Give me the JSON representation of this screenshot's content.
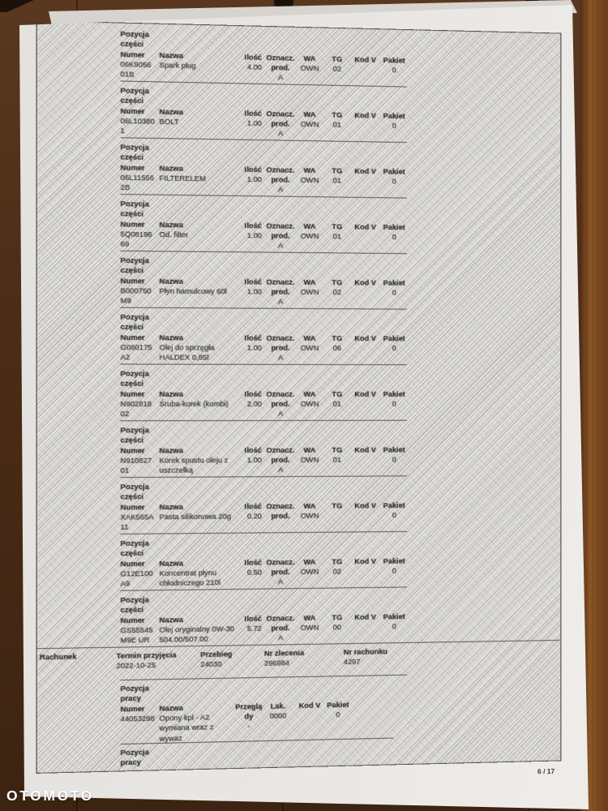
{
  "watermark_text": "OTOMOTO",
  "page_footer": "6 / 17",
  "parts_labels": {
    "pozycja": "Pozycja",
    "czesci": "części",
    "numer": "Numer",
    "nazwa": "Nazwa",
    "ilosc": "Ilość",
    "oznacz": "Oznacz.",
    "prod": "prod.",
    "wa": "WA",
    "tg": "TG",
    "kod_v": "Kod V",
    "pakiet": "Pakiet"
  },
  "parts": [
    {
      "numer1": "06K9056",
      "numer2": "01B",
      "nazwa1": "Spark plug",
      "nazwa2": "",
      "ilosc": "4.00",
      "oznacz_val": "A",
      "wa": "OWN",
      "tg": "02",
      "pakiet": "0"
    },
    {
      "numer1": "06L10380",
      "numer2": "1",
      "nazwa1": "BOLT",
      "nazwa2": "",
      "ilosc": "1.00",
      "oznacz_val": "A",
      "wa": "OWN",
      "tg": "01",
      "pakiet": "0"
    },
    {
      "numer1": "06L11556",
      "numer2": "2B",
      "nazwa1": "FILTERELEM",
      "nazwa2": "",
      "ilosc": "1.00",
      "oznacz_val": "A",
      "wa": "OWN",
      "tg": "01",
      "pakiet": "0"
    },
    {
      "numer1": "5Q08196",
      "numer2": "69",
      "nazwa1": "Od. filter",
      "nazwa2": "",
      "ilosc": "1.00",
      "oznacz_val": "A",
      "wa": "OWN",
      "tg": "01",
      "pakiet": "0"
    },
    {
      "numer1": "B000750",
      "numer2": "M9",
      "nazwa1": "Płyn hamulcowy 60l",
      "nazwa2": "",
      "ilosc": "1.00",
      "oznacz_val": "A",
      "wa": "OWN",
      "tg": "02",
      "pakiet": "0"
    },
    {
      "numer1": "G060175",
      "numer2": "A2",
      "nazwa1": "Olej do sprzęgła",
      "nazwa2": "HALDEX 0,85l",
      "ilosc": "1.00",
      "oznacz_val": "A",
      "wa": "OWN",
      "tg": "06",
      "pakiet": "0"
    },
    {
      "numer1": "N902818",
      "numer2": "02",
      "nazwa1": "Śruba-korek (kombi)",
      "nazwa2": "",
      "ilosc": "2.00",
      "oznacz_val": "A",
      "wa": "OWN",
      "tg": "01",
      "pakiet": "0"
    },
    {
      "numer1": "N910827",
      "numer2": "01",
      "nazwa1": "Korek spustu oleju z",
      "nazwa2": "uszczelką",
      "ilosc": "1.00",
      "oznacz_val": "A",
      "wa": "OWN",
      "tg": "01",
      "pakiet": "0"
    },
    {
      "numer1": "XAK565A",
      "numer2": "11",
      "nazwa1": "Pasta silikonowa 20g",
      "nazwa2": "",
      "ilosc": "0.20",
      "oznacz_val": "",
      "wa": "OWN",
      "tg": "",
      "pakiet": "0"
    },
    {
      "numer1": "G12E100",
      "numer2": "A9",
      "nazwa1": "Koncentrat płynu",
      "nazwa2": "chłodniczego 210l",
      "ilosc": "0.50",
      "oznacz_val": "A",
      "wa": "OWN",
      "tg": "02",
      "pakiet": "0"
    },
    {
      "numer1": "GS55545",
      "numer2": "M9E UR",
      "nazwa1": "Olej oryginalny 0W-30",
      "nazwa2": "504.00/507.00",
      "ilosc": "5.72",
      "oznacz_val": "A",
      "wa": "OWN",
      "tg": "00",
      "pakiet": "0"
    }
  ],
  "invoice_row": {
    "rachunek_label": "Rachunek",
    "termin_label": "Termin przyjęcia",
    "termin_value": "2022-10-25",
    "przebieg_label": "Przebieg",
    "przebieg_value": "24030",
    "zlecenie_label": "Nr zlecenia",
    "zlecenie_value": "296984",
    "rachunek_nr_label": "Nr rachunku",
    "rachunek_nr_value": "4297"
  },
  "work_labels": {
    "pozycja": "Pozycja",
    "pracy": "pracy",
    "numer": "Numer",
    "nazwa": "Nazwa",
    "przeglad_line1": "Przeglą",
    "przeglad_line2": "dy",
    "lak": "Lak.",
    "kod_v": "Kod V",
    "pakiet": "Pakiet"
  },
  "work_item": {
    "numer": "44053298",
    "nazwa1": "Opony kpl - A2",
    "nazwa2": "wymiana wraz z",
    "nazwa3": "wywaz",
    "przeglady_value": "-",
    "lak_value": "0000",
    "pakiet_value": "0"
  },
  "work_block2": {
    "pozycja": "Pozycja",
    "pracy": "pracy"
  },
  "colors": {
    "paper": "#e8e6e2",
    "hatch": "#d9d7d3",
    "wood_dark": "#4c2d18",
    "watermark": "#ffffff"
  }
}
